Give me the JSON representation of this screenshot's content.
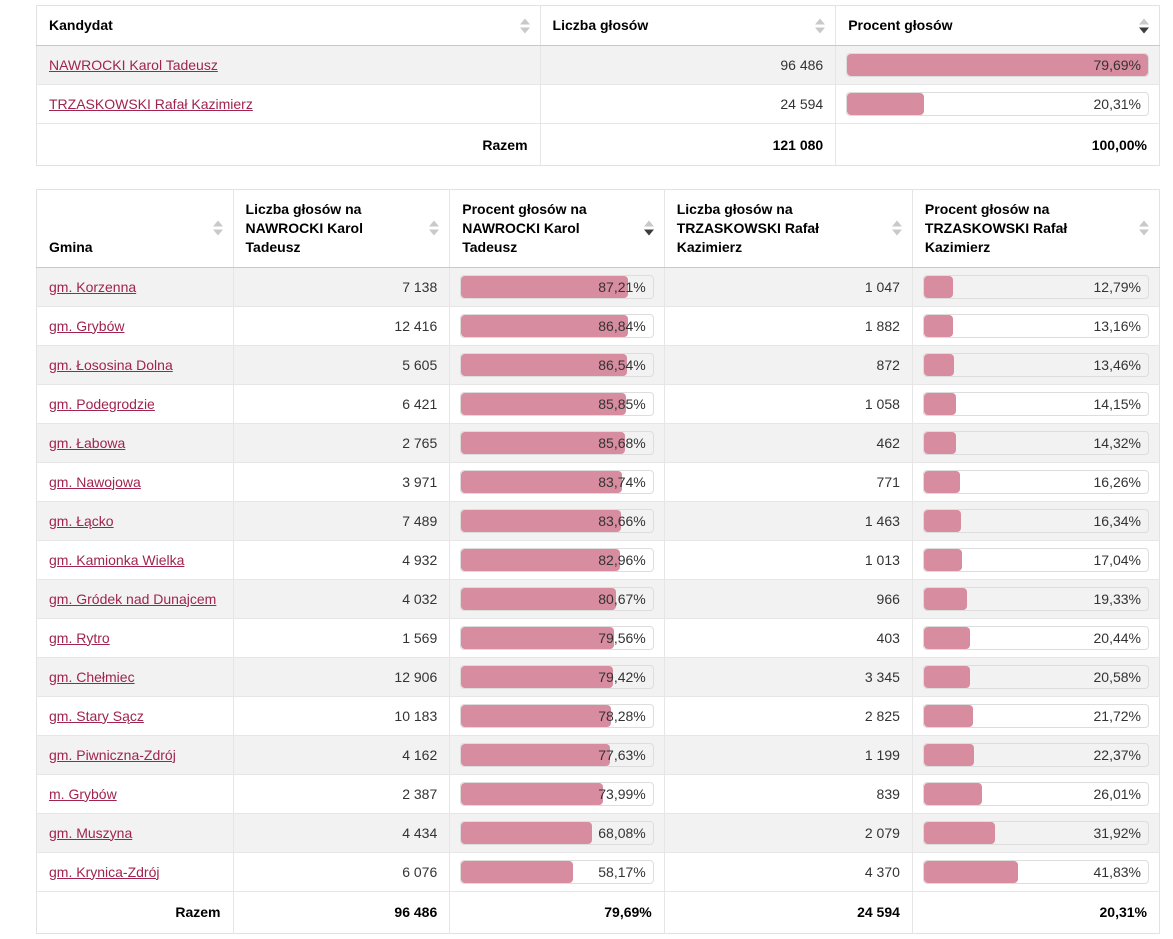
{
  "colors": {
    "bar_fill": "#d78ca0",
    "bar_track_border": "#dddddd",
    "link": "#a0244d",
    "row_alt_background": "#f2f2f2",
    "grid_border": "#e6e6e6",
    "header_border": "#c9c9c9",
    "sort_inactive": "#c9c9c9",
    "sort_active": "#3c3c3c"
  },
  "icons": {
    "sort": "sort-arrows-icon"
  },
  "summary_table": {
    "columns": [
      {
        "label": "Kandydat",
        "sort": "none"
      },
      {
        "label": "Liczba głosów",
        "sort": "none"
      },
      {
        "label": "Procent głosów",
        "sort": "desc"
      }
    ],
    "rows": [
      {
        "candidate": "NAWROCKI Karol Tadeusz",
        "votes": "96 486",
        "percent": "79,69%",
        "bar": 100
      },
      {
        "candidate": "TRZASKOWSKI Rafał Kazimierz",
        "votes": "24 594",
        "percent": "20,31%",
        "bar": 25.5
      }
    ],
    "footer": {
      "label": "Razem",
      "votes": "121 080",
      "percent": "100,00%"
    }
  },
  "gmina_table": {
    "columns": [
      {
        "label": "Gmina",
        "sort": "none"
      },
      {
        "label": "Liczba głosów na NAWROCKI Karol Tadeusz",
        "sort": "none"
      },
      {
        "label": "Procent głosów na NAWROCKI Karol Tadeusz",
        "sort": "desc"
      },
      {
        "label": "Liczba głosów na TRZASKOWSKI Rafał Kazimierz",
        "sort": "none"
      },
      {
        "label": "Procent głosów na TRZASKOWSKI Rafał Kazimierz",
        "sort": "none"
      }
    ],
    "rows": [
      {
        "gmina": "gm. Korzenna",
        "votes_a": "7 138",
        "percent_a": "87,21%",
        "bar_a": 87.21,
        "votes_b": "1 047",
        "percent_b": "12,79%",
        "bar_b": 12.79
      },
      {
        "gmina": "gm. Grybów",
        "votes_a": "12 416",
        "percent_a": "86,84%",
        "bar_a": 86.84,
        "votes_b": "1 882",
        "percent_b": "13,16%",
        "bar_b": 13.16
      },
      {
        "gmina": "gm. Łososina Dolna",
        "votes_a": "5 605",
        "percent_a": "86,54%",
        "bar_a": 86.54,
        "votes_b": "872",
        "percent_b": "13,46%",
        "bar_b": 13.46
      },
      {
        "gmina": "gm. Podegrodzie",
        "votes_a": "6 421",
        "percent_a": "85,85%",
        "bar_a": 85.85,
        "votes_b": "1 058",
        "percent_b": "14,15%",
        "bar_b": 14.15
      },
      {
        "gmina": "gm. Łabowa",
        "votes_a": "2 765",
        "percent_a": "85,68%",
        "bar_a": 85.68,
        "votes_b": "462",
        "percent_b": "14,32%",
        "bar_b": 14.32
      },
      {
        "gmina": "gm. Nawojowa",
        "votes_a": "3 971",
        "percent_a": "83,74%",
        "bar_a": 83.74,
        "votes_b": "771",
        "percent_b": "16,26%",
        "bar_b": 16.26
      },
      {
        "gmina": "gm. Łącko",
        "votes_a": "7 489",
        "percent_a": "83,66%",
        "bar_a": 83.66,
        "votes_b": "1 463",
        "percent_b": "16,34%",
        "bar_b": 16.34
      },
      {
        "gmina": "gm. Kamionka Wielka",
        "votes_a": "4 932",
        "percent_a": "82,96%",
        "bar_a": 82.96,
        "votes_b": "1 013",
        "percent_b": "17,04%",
        "bar_b": 17.04
      },
      {
        "gmina": "gm. Gródek nad Dunajcem",
        "votes_a": "4 032",
        "percent_a": "80,67%",
        "bar_a": 80.67,
        "votes_b": "966",
        "percent_b": "19,33%",
        "bar_b": 19.33
      },
      {
        "gmina": "gm. Rytro",
        "votes_a": "1 569",
        "percent_a": "79,56%",
        "bar_a": 79.56,
        "votes_b": "403",
        "percent_b": "20,44%",
        "bar_b": 20.44
      },
      {
        "gmina": "gm. Chełmiec",
        "votes_a": "12 906",
        "percent_a": "79,42%",
        "bar_a": 79.42,
        "votes_b": "3 345",
        "percent_b": "20,58%",
        "bar_b": 20.58
      },
      {
        "gmina": "gm. Stary Sącz",
        "votes_a": "10 183",
        "percent_a": "78,28%",
        "bar_a": 78.28,
        "votes_b": "2 825",
        "percent_b": "21,72%",
        "bar_b": 21.72
      },
      {
        "gmina": "gm. Piwniczna-Zdrój",
        "votes_a": "4 162",
        "percent_a": "77,63%",
        "bar_a": 77.63,
        "votes_b": "1 199",
        "percent_b": "22,37%",
        "bar_b": 22.37
      },
      {
        "gmina": "m. Grybów",
        "votes_a": "2 387",
        "percent_a": "73,99%",
        "bar_a": 73.99,
        "votes_b": "839",
        "percent_b": "26,01%",
        "bar_b": 26.01
      },
      {
        "gmina": "gm. Muszyna",
        "votes_a": "4 434",
        "percent_a": "68,08%",
        "bar_a": 68.08,
        "votes_b": "2 079",
        "percent_b": "31,92%",
        "bar_b": 31.92
      },
      {
        "gmina": "gm. Krynica-Zdrój",
        "votes_a": "6 076",
        "percent_a": "58,17%",
        "bar_a": 58.17,
        "votes_b": "4 370",
        "percent_b": "41,83%",
        "bar_b": 41.83
      }
    ],
    "footer": {
      "label": "Razem",
      "votes_a": "96 486",
      "percent_a": "79,69%",
      "votes_b": "24 594",
      "percent_b": "20,31%"
    }
  }
}
